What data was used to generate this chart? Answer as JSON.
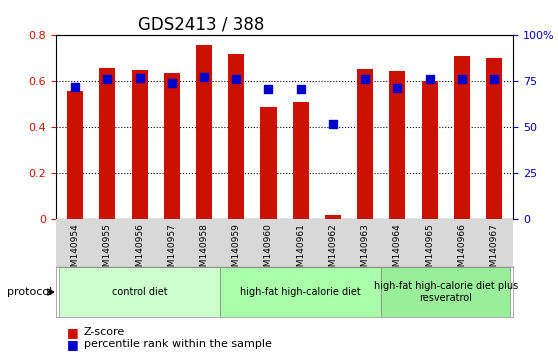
{
  "title": "GDS2413 / 388",
  "samples": [
    "GSM140954",
    "GSM140955",
    "GSM140956",
    "GSM140957",
    "GSM140958",
    "GSM140959",
    "GSM140960",
    "GSM140961",
    "GSM140962",
    "GSM140963",
    "GSM140964",
    "GSM140965",
    "GSM140966",
    "GSM140967"
  ],
  "zscore": [
    0.56,
    0.66,
    0.65,
    0.635,
    0.76,
    0.72,
    0.49,
    0.51,
    0.02,
    0.655,
    0.645,
    0.6,
    0.71,
    0.7
  ],
  "percentile": [
    0.575,
    0.61,
    0.615,
    0.595,
    0.62,
    0.61,
    0.565,
    0.565,
    0.415,
    0.61,
    0.57,
    0.61,
    0.61,
    0.61
  ],
  "bar_color": "#cc1100",
  "dot_color": "#0000cc",
  "ylim_left": [
    0,
    0.8
  ],
  "ylim_right": [
    0,
    100
  ],
  "yticks_left": [
    0,
    0.2,
    0.4,
    0.6,
    0.8
  ],
  "yticks_right": [
    0,
    25,
    50,
    75,
    100
  ],
  "ytick_right_labels": [
    "0",
    "25",
    "50",
    "75",
    "100%"
  ],
  "groups": [
    {
      "label": "control diet",
      "start": 0,
      "end": 5,
      "color": "#ccffcc"
    },
    {
      "label": "high-fat high-calorie diet",
      "start": 5,
      "end": 10,
      "color": "#aaffaa"
    },
    {
      "label": "high-fat high-calorie diet plus\nresveratrol",
      "start": 10,
      "end": 14,
      "color": "#99ee99"
    }
  ],
  "protocol_label": "protocol",
  "legend_zscore": "Z-score",
  "legend_percentile": "percentile rank within the sample",
  "grid_color": "black",
  "title_fontsize": 12,
  "axis_label_color_left": "#cc1100",
  "axis_label_color_right": "#0000cc"
}
